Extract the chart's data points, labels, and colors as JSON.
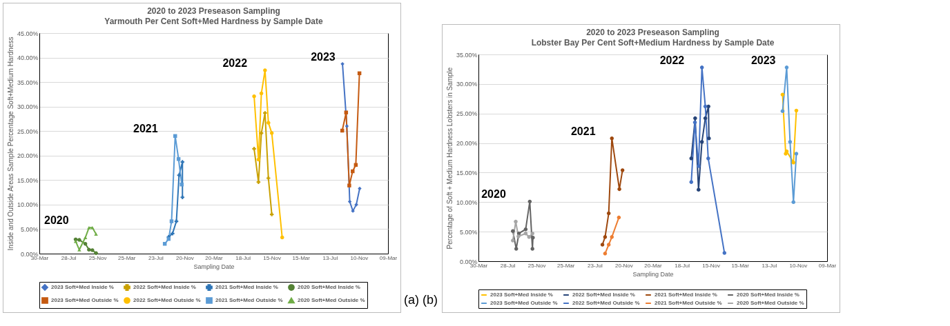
{
  "chart_data": [
    {
      "type": "line",
      "title": "2020 to 2023 Preseason Sampling",
      "subtitle": "Yarmouth Per Cent Soft+Med Hardness by Sample Date",
      "xlabel": "Sampling Date",
      "ylabel": "Inside and Outside Areas Sample Percentage Soft+Medium Hardness",
      "grid": "y",
      "legend": "bottom",
      "xlim": [
        "2020-03-30",
        "2024-03-09"
      ],
      "xticks": [
        {
          "value": "2020-03-30",
          "label": "30-Mar"
        },
        {
          "value": "2020-07-28",
          "label": "28-Jul"
        },
        {
          "value": "2020-11-25",
          "label": "25-Nov"
        },
        {
          "value": "2021-03-25",
          "label": "25-Mar"
        },
        {
          "value": "2021-07-23",
          "label": "23-Jul"
        },
        {
          "value": "2021-11-20",
          "label": "20-Nov"
        },
        {
          "value": "2022-03-20",
          "label": "20-Mar"
        },
        {
          "value": "2022-07-18",
          "label": "18-Jul"
        },
        {
          "value": "2022-11-15",
          "label": "15-Nov"
        },
        {
          "value": "2023-03-15",
          "label": "15-Mar"
        },
        {
          "value": "2023-07-13",
          "label": "13-Jul"
        },
        {
          "value": "2023-11-10",
          "label": "10-Nov"
        },
        {
          "value": "2024-03-09",
          "label": "09-Mar"
        }
      ],
      "ylim": [
        0,
        45
      ],
      "yticks": [
        {
          "value": 0,
          "label": "0.00%"
        },
        {
          "value": 5,
          "label": "5.00%"
        },
        {
          "value": 10,
          "label": "10.00%"
        },
        {
          "value": 15,
          "label": "15.00%"
        },
        {
          "value": 20,
          "label": "20.00%"
        },
        {
          "value": 25,
          "label": "25.00%"
        },
        {
          "value": 30,
          "label": "30.00%"
        },
        {
          "value": 35,
          "label": "35.00%"
        },
        {
          "value": 40,
          "label": "40.00%"
        },
        {
          "value": 45,
          "label": "45.00%"
        }
      ],
      "series": [
        {
          "name": "2023 Soft+Med Inside %",
          "color": "#4472c4",
          "marker": "diamond",
          "x": [
            "2023-09-03",
            "2023-09-21",
            "2023-10-03",
            "2023-10-16",
            "2023-10-30",
            "2023-11-13"
          ],
          "values": [
            38.7,
            26.0,
            10.6,
            8.7,
            10.0,
            13.3
          ]
        },
        {
          "name": "2022 Soft+Med Inside %",
          "color": "#c9a000",
          "marker": "cross",
          "x": [
            "2022-09-03",
            "2022-09-21",
            "2022-10-03",
            "2022-10-18",
            "2022-11-01",
            "2022-11-15"
          ],
          "values": [
            21.4,
            14.6,
            24.6,
            28.7,
            15.4,
            8.0
          ]
        },
        {
          "name": "2021 Soft+Med Inside %",
          "color": "#2e75b6",
          "marker": "cross",
          "x": [
            "2021-09-15",
            "2021-10-01",
            "2021-10-17",
            "2021-10-28",
            "2021-11-11",
            "2021-11-11"
          ],
          "values": [
            3.4,
            4.1,
            6.6,
            16.0,
            18.7,
            11.5
          ]
        },
        {
          "name": "2020 Soft+Med Inside %",
          "color": "#548235",
          "marker": "circle",
          "x": [
            "2020-08-27",
            "2020-09-11",
            "2020-10-06",
            "2020-10-21",
            "2020-11-04",
            "2020-11-19"
          ],
          "values": [
            2.9,
            2.8,
            2.0,
            0.8,
            0.7,
            0.1
          ]
        },
        {
          "name": "2023 Soft+Med Outside %",
          "color": "#c55a11",
          "marker": "square",
          "x": [
            "2023-09-02",
            "2023-09-18",
            "2023-10-01",
            "2023-10-15",
            "2023-10-28",
            "2023-11-12"
          ],
          "values": [
            25.1,
            28.8,
            13.9,
            16.8,
            18.1,
            36.8
          ]
        },
        {
          "name": "2022 Soft+Med Outside %",
          "color": "#ffc000",
          "marker": "circle",
          "x": [
            "2022-09-03",
            "2022-09-21",
            "2022-10-03",
            "2022-10-18",
            "2022-11-01",
            "2022-11-15",
            "2022-12-28"
          ],
          "values": [
            32.1,
            19.2,
            32.7,
            37.4,
            26.7,
            24.6,
            3.3
          ]
        },
        {
          "name": "2021 Soft+Med Outside %",
          "color": "#5b9bd5",
          "marker": "square",
          "x": [
            "2021-08-30",
            "2021-09-15",
            "2021-09-27",
            "2021-10-12",
            "2021-10-26",
            "2021-11-08"
          ],
          "values": [
            2.0,
            3.0,
            6.6,
            24.0,
            19.3,
            14.1
          ]
        },
        {
          "name": "2020 Soft+Med Outside %",
          "color": "#70ad47",
          "marker": "triangle",
          "x": [
            "2020-08-27",
            "2020-09-11",
            "2020-10-06",
            "2020-10-21",
            "2020-11-04",
            "2020-11-19"
          ],
          "values": [
            2.5,
            0.8,
            3.3,
            5.3,
            5.3,
            4.0
          ]
        }
      ],
      "annotations": [
        "2020",
        "2021",
        "2022",
        "2023",
        "(a)"
      ]
    },
    {
      "type": "line",
      "title": "2020 to 2023 Preseason Sampling",
      "subtitle": "Lobster Bay Per Cent Soft+Medium Hardness by Sample Date",
      "xlabel": "Sampling Date",
      "ylabel": "Percentage of Soft + Medium Hardness Lobsters in Sample",
      "grid": "y",
      "legend": "bottom",
      "marker": "circle",
      "xlim": [
        "2020-03-30",
        "2024-03-09"
      ],
      "xticks": [
        {
          "value": "2020-03-30",
          "label": "30-Mar"
        },
        {
          "value": "2020-07-28",
          "label": "28-Jul"
        },
        {
          "value": "2020-11-25",
          "label": "25-Nov"
        },
        {
          "value": "2021-03-25",
          "label": "25-Mar"
        },
        {
          "value": "2021-07-23",
          "label": "23-Jul"
        },
        {
          "value": "2021-11-20",
          "label": "20-Nov"
        },
        {
          "value": "2022-03-20",
          "label": "20-Mar"
        },
        {
          "value": "2022-07-18",
          "label": "18-Jul"
        },
        {
          "value": "2022-11-15",
          "label": "15-Nov"
        },
        {
          "value": "2023-03-15",
          "label": "15-Mar"
        },
        {
          "value": "2023-07-13",
          "label": "13-Jul"
        },
        {
          "value": "2023-11-10",
          "label": "10-Nov"
        },
        {
          "value": "2024-03-09",
          "label": "09-Mar"
        }
      ],
      "ylim": [
        0,
        35
      ],
      "yticks": [
        {
          "value": 0,
          "label": "0.00%"
        },
        {
          "value": 5,
          "label": "5.00%"
        },
        {
          "value": 10,
          "label": "10.00%"
        },
        {
          "value": 15,
          "label": "15.00%"
        },
        {
          "value": 20,
          "label": "20.00%"
        },
        {
          "value": 25,
          "label": "25.00%"
        },
        {
          "value": 30,
          "label": "30.00%"
        },
        {
          "value": 35,
          "label": "35.00%"
        }
      ],
      "series": [
        {
          "name": "2023 Soft+Med Inside %",
          "color": "#ffc000",
          "x": [
            "2023-09-07",
            "2023-09-20",
            "2023-09-24",
            "2023-10-22",
            "2023-11-03"
          ],
          "values": [
            28.2,
            18.2,
            18.6,
            16.7,
            25.5
          ]
        },
        {
          "name": "2022 Soft+Med Inside %",
          "color": "#264478",
          "x": [
            "2022-08-26",
            "2022-09-11",
            "2022-09-25",
            "2022-10-09",
            "2022-10-23",
            "2022-11-05",
            "2022-11-07"
          ],
          "values": [
            17.4,
            24.2,
            12.1,
            20.2,
            24.2,
            26.2,
            20.8
          ]
        },
        {
          "name": "2021 Soft+Med Inside %",
          "color": "#9e480e",
          "x": [
            "2021-08-24",
            "2021-09-04",
            "2021-09-19",
            "2021-10-02",
            "2021-11-02",
            "2021-11-15"
          ],
          "values": [
            2.8,
            4.1,
            8.1,
            20.8,
            12.2,
            15.4
          ]
        },
        {
          "name": "2020 Soft+Med Inside %",
          "color": "#636363",
          "x": [
            "2020-08-19",
            "2020-09-02",
            "2020-09-13",
            "2020-10-11",
            "2020-10-28",
            "2020-11-08",
            "2020-11-10"
          ],
          "values": [
            5.1,
            2.1,
            4.7,
            5.4,
            10.1,
            2.1,
            4.0
          ]
        },
        {
          "name": "2023 Soft+Med Outside %",
          "color": "#5b9bd5",
          "x": [
            "2023-09-07",
            "2023-09-24",
            "2023-10-08",
            "2023-10-22",
            "2023-11-03"
          ],
          "values": [
            25.4,
            32.8,
            20.2,
            10.0,
            18.2
          ]
        },
        {
          "name": "2022 Soft+Med Outside %",
          "color": "#4472c4",
          "x": [
            "2022-08-26",
            "2022-09-10",
            "2022-09-25",
            "2022-10-09",
            "2022-10-23",
            "2022-11-04",
            "2023-01-10"
          ],
          "values": [
            13.4,
            23.5,
            16.1,
            32.8,
            26.2,
            17.4,
            1.4
          ]
        },
        {
          "name": "2021 Soft+Med Outside %",
          "color": "#ed7d31",
          "x": [
            "2021-09-04",
            "2021-09-19",
            "2021-10-02",
            "2021-10-31"
          ],
          "values": [
            1.3,
            2.8,
            4.1,
            7.4
          ]
        },
        {
          "name": "2020 Soft+Med Outside %",
          "color": "#a5a5a5",
          "x": [
            "2020-08-19",
            "2020-08-31",
            "2020-09-11",
            "2020-10-11",
            "2020-10-25",
            "2020-11-08"
          ],
          "values": [
            3.5,
            6.7,
            4.2,
            4.7,
            4.1,
            4.7
          ]
        }
      ],
      "annotations": [
        "2020",
        "2021",
        "2022",
        "2023",
        "(b)"
      ]
    }
  ]
}
